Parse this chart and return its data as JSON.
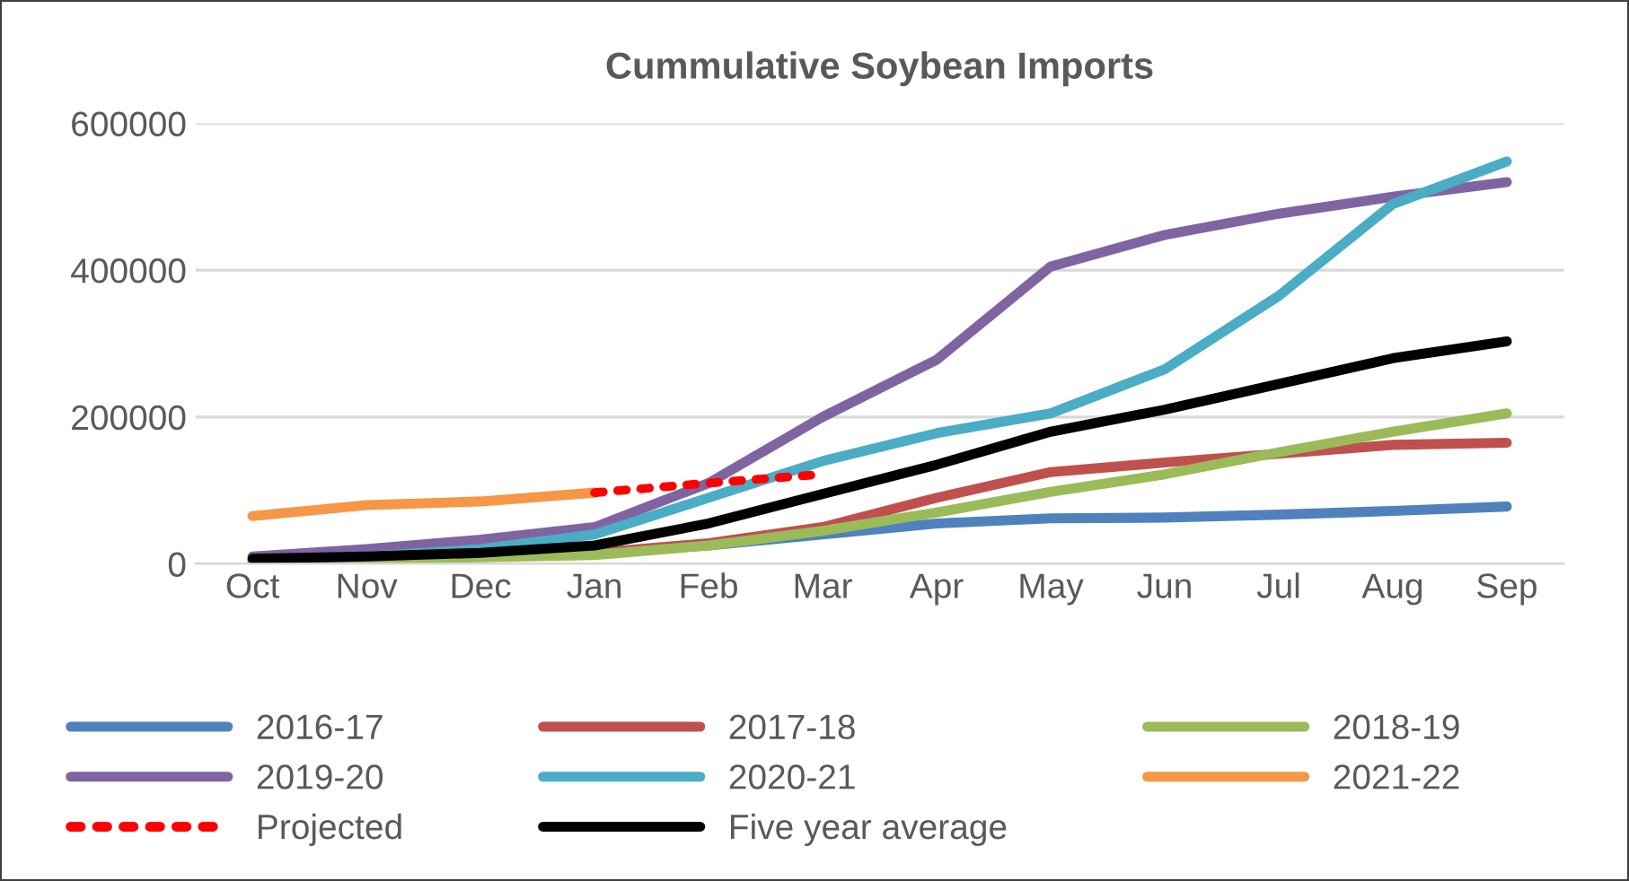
{
  "chart_data": {
    "type": "line",
    "title": "Cummulative Soybean Imports",
    "categories": [
      "Oct",
      "Nov",
      "Dec",
      "Jan",
      "Feb",
      "Mar",
      "Apr",
      "May",
      "Jun",
      "Jul",
      "Aug",
      "Sep"
    ],
    "series": [
      {
        "name": "2016-17",
        "color": "#4f81bd",
        "values": [
          3000,
          8000,
          12000,
          15000,
          25000,
          40000,
          55000,
          62000,
          63000,
          67000,
          72000,
          78000
        ]
      },
      {
        "name": "2017-18",
        "color": "#c0504d",
        "values": [
          null,
          null,
          12000,
          15000,
          28000,
          50000,
          90000,
          125000,
          138000,
          150000,
          162000,
          165000
        ]
      },
      {
        "name": "2018-19",
        "color": "#9bbb59",
        "values": [
          3000,
          6000,
          9000,
          12000,
          25000,
          45000,
          70000,
          98000,
          122000,
          152000,
          180000,
          205000
        ]
      },
      {
        "name": "2019-20",
        "color": "#8064a2",
        "values": [
          10000,
          20000,
          33000,
          50000,
          110000,
          200000,
          278000,
          405000,
          448000,
          477000,
          500000,
          520000
        ]
      },
      {
        "name": "2020-21",
        "color": "#4bacc6",
        "values": [
          5000,
          10000,
          20000,
          40000,
          90000,
          140000,
          178000,
          205000,
          265000,
          365000,
          490000,
          548000
        ]
      },
      {
        "name": "2021-22",
        "color": "#f79646",
        "values": [
          65000,
          80000,
          85000,
          97000,
          null,
          null,
          null,
          null,
          null,
          null,
          null,
          null
        ]
      },
      {
        "name": "Projected",
        "color": "#ff0000",
        "line_style": "dotted",
        "values": [
          null,
          null,
          null,
          97000,
          110000,
          122000,
          null,
          null,
          null,
          null,
          null,
          null
        ]
      },
      {
        "name": "Five year average",
        "color": "#000000",
        "values": [
          7000,
          10000,
          15000,
          25000,
          55000,
          95000,
          135000,
          180000,
          210000,
          245000,
          280000,
          303000
        ]
      }
    ],
    "ylim": [
      0,
      600000
    ],
    "yticks": [
      0,
      200000,
      400000,
      600000
    ],
    "grid": "y",
    "legend": "bottom",
    "line_style": "solid"
  }
}
